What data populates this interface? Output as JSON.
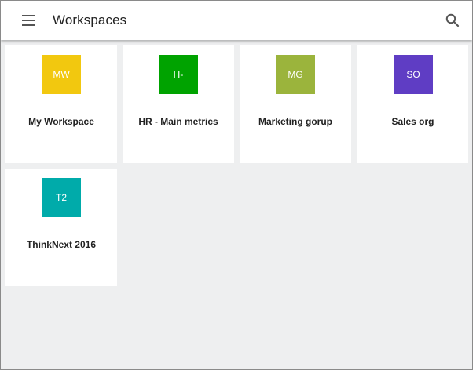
{
  "header": {
    "title": "Workspaces",
    "menu_icon": "hamburger-menu-icon",
    "search_icon": "search-icon"
  },
  "workspaces": [
    {
      "initials": "MW",
      "name": "My Workspace",
      "color": "#f2c80f"
    },
    {
      "initials": "H-",
      "name": "HR - Main metrics",
      "color": "#00a300"
    },
    {
      "initials": "MG",
      "name": "Marketing gorup",
      "color": "#9bb43c"
    },
    {
      "initials": "SO",
      "name": "Sales org",
      "color": "#5f3dc4"
    },
    {
      "initials": "T2",
      "name": "ThinkNext 2016",
      "color": "#00abaa"
    }
  ]
}
